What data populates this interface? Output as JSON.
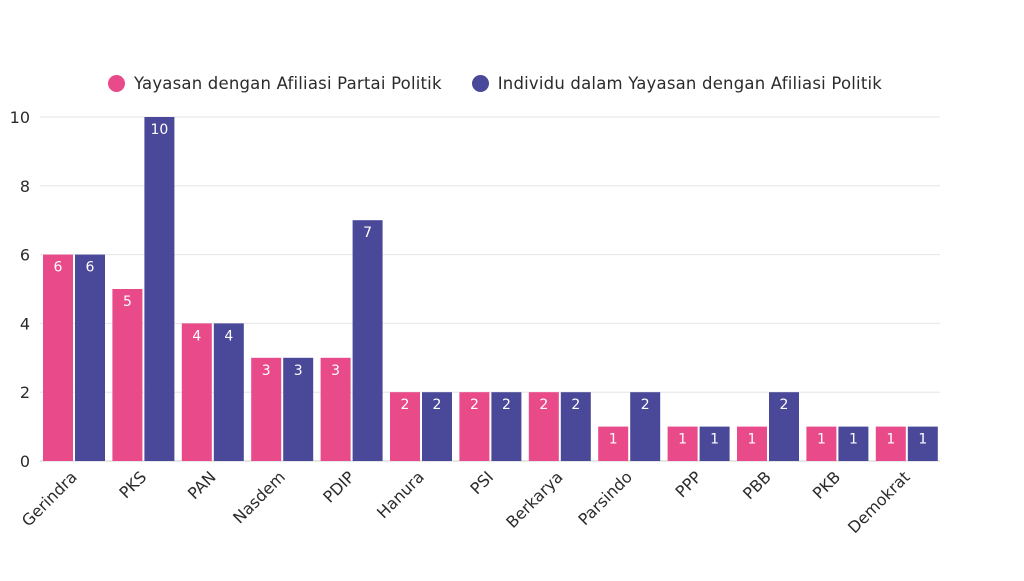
{
  "chart_data": {
    "type": "bar",
    "categories": [
      "Gerindra",
      "PKS",
      "PAN",
      "Nasdem",
      "PDIP",
      "Hanura",
      "PSI",
      "Berkarya",
      "Parsindo",
      "PPP",
      "PBB",
      "PKB",
      "Demokrat"
    ],
    "series": [
      {
        "name": "Yayasan dengan Afiliasi Partai Politik",
        "color": "#e84a8a",
        "values": [
          6,
          5,
          4,
          3,
          3,
          2,
          2,
          2,
          1,
          1,
          1,
          1,
          1
        ]
      },
      {
        "name": "Individu dalam Yayasan dengan Afiliasi Politik",
        "color": "#4a4899",
        "values": [
          6,
          10,
          4,
          3,
          7,
          2,
          2,
          2,
          2,
          1,
          2,
          1,
          1
        ]
      }
    ],
    "yticks": [
      "0",
      "2",
      "4",
      "6",
      "8",
      "10"
    ],
    "ylim": [
      0,
      10
    ],
    "grid": true,
    "legend_position": "top-left",
    "title": "",
    "xlabel": "",
    "ylabel": ""
  }
}
